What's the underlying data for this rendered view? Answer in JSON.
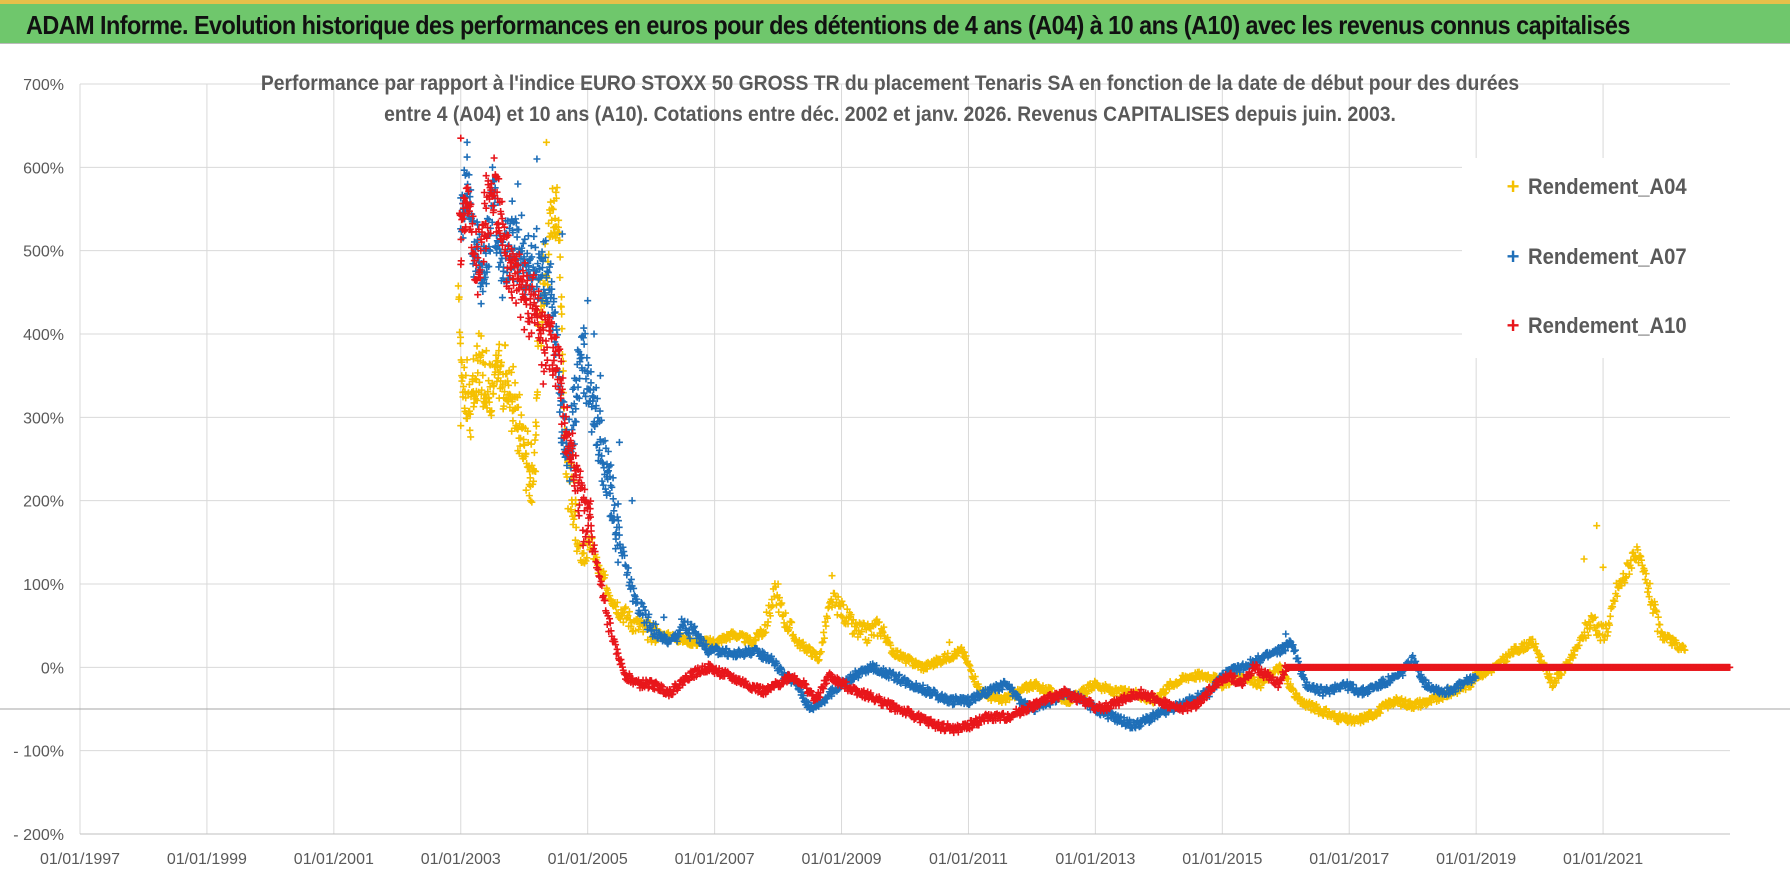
{
  "header": {
    "title": "ADAM Informe. Evolution historique des performances en euros pour des détentions de 4 ans (A04) à 10 ans (A10) avec les revenus connus capitalisés"
  },
  "chart_data": {
    "type": "scatter",
    "title_line1": "Performance par rapport à l'indice EURO STOXX 50 GROSS TR  du placement Tenaris SA en fonction de la date de début pour des durées",
    "title_line2": "entre 4 (A04) et 10 ans (A10). Cotations entre déc. 2002 et janv. 2026. Revenus CAPITALISES depuis juin. 2003.",
    "xlabel": "",
    "ylabel": "",
    "x_ticks": [
      "01/01/1997",
      "01/01/1999",
      "01/01/2001",
      "01/01/2003",
      "01/01/2005",
      "01/01/2007",
      "01/01/2009",
      "01/01/2011",
      "01/01/2013",
      "01/01/2015",
      "01/01/2017",
      "01/01/2019",
      "01/01/2021"
    ],
    "x_range": [
      1997.0,
      2023.0
    ],
    "y_ticks": [
      {
        "value": 700,
        "label": "700%"
      },
      {
        "value": 600,
        "label": "600%"
      },
      {
        "value": 500,
        "label": "500%"
      },
      {
        "value": 400,
        "label": "400%"
      },
      {
        "value": 300,
        "label": "300%"
      },
      {
        "value": 200,
        "label": "200%"
      },
      {
        "value": 100,
        "label": "100%"
      },
      {
        "value": 0,
        "label": "0%"
      },
      {
        "value": -100,
        "label": "- 100%"
      },
      {
        "value": -200,
        "label": "- 200%"
      }
    ],
    "ylim": [
      -200,
      700
    ],
    "legend_position": "top-right",
    "series": [
      {
        "name": "Rendement_A04",
        "color": "#f5c000",
        "x": [
          2002.97,
          2003.05,
          2003.15,
          2003.3,
          2003.45,
          2003.6,
          2003.75,
          2003.9,
          2004.05,
          2004.15,
          2004.25,
          2004.35,
          2004.45,
          2004.55,
          2004.65,
          2004.75,
          2004.85,
          2004.95,
          2005.05,
          2005.2,
          2005.35,
          2005.5,
          2005.7,
          2005.9,
          2006.1,
          2006.4,
          2006.7,
          2007.0,
          2007.3,
          2007.6,
          2007.8,
          2007.95,
          2008.1,
          2008.3,
          2008.5,
          2008.65,
          2008.75,
          2008.85,
          2009.0,
          2009.2,
          2009.4,
          2009.6,
          2009.8,
          2010.0,
          2010.3,
          2010.6,
          2010.9,
          2011.2,
          2011.5,
          2011.8,
          2012.0,
          2012.3,
          2012.6,
          2013.0,
          2013.3,
          2013.6,
          2013.9,
          2014.2,
          2014.5,
          2014.8,
          2015.0,
          2015.3,
          2015.6,
          2015.9,
          2016.2,
          2016.5,
          2016.8,
          2017.1,
          2017.4,
          2017.7,
          2018.0,
          2018.3,
          2018.6,
          2018.9,
          2019.0,
          2019.3,
          2019.6,
          2019.9,
          2020.2,
          2020.5,
          2020.7,
          2020.85,
          2020.95,
          2021.1,
          2021.2,
          2021.35,
          2021.5,
          2021.7,
          2021.9,
          2022.1,
          2022.3
        ],
        "y": [
          420,
          340,
          310,
          360,
          330,
          350,
          340,
          300,
          250,
          240,
          420,
          480,
          560,
          520,
          260,
          200,
          140,
          130,
          150,
          110,
          90,
          70,
          55,
          45,
          40,
          35,
          30,
          30,
          40,
          30,
          50,
          90,
          60,
          30,
          20,
          10,
          50,
          80,
          70,
          45,
          40,
          50,
          20,
          10,
          0,
          10,
          20,
          -30,
          -40,
          -30,
          -20,
          -30,
          -40,
          -20,
          -30,
          -30,
          -40,
          -20,
          -10,
          -10,
          -20,
          -10,
          -20,
          0,
          -40,
          -50,
          -60,
          -65,
          -55,
          -40,
          -45,
          -40,
          -30,
          -20,
          -10,
          0,
          20,
          30,
          -20,
          10,
          40,
          60,
          40,
          50,
          90,
          110,
          140,
          100,
          40,
          30,
          20
        ],
        "scatter": [
          [
            2003.0,
            290
          ],
          [
            2003.2,
            370
          ],
          [
            2003.6,
            380
          ],
          [
            2003.9,
            260
          ],
          [
            2004.1,
            200
          ],
          [
            2004.35,
            630
          ],
          [
            2004.5,
            570
          ],
          [
            2008.0,
            100
          ],
          [
            2008.85,
            110
          ],
          [
            2010.7,
            30
          ],
          [
            2020.7,
            130
          ],
          [
            2020.9,
            170
          ],
          [
            2021.0,
            120
          ]
        ]
      },
      {
        "name": "Rendement_A07",
        "color": "#1f6fb8",
        "x": [
          2003.0,
          2003.1,
          2003.2,
          2003.35,
          2003.5,
          2003.65,
          2003.8,
          2003.95,
          2004.1,
          2004.25,
          2004.4,
          2004.5,
          2004.6,
          2004.7,
          2004.8,
          2004.9,
          2005.0,
          2005.1,
          2005.25,
          2005.4,
          2005.5,
          2005.6,
          2005.75,
          2005.9,
          2006.1,
          2006.3,
          2006.5,
          2006.7,
          2006.9,
          2007.1,
          2007.3,
          2007.6,
          2007.9,
          2008.1,
          2008.3,
          2008.5,
          2008.7,
          2008.85,
          2009.0,
          2009.2,
          2009.5,
          2009.8,
          2010.1,
          2010.4,
          2010.7,
          2011.0,
          2011.3,
          2011.6,
          2011.8,
          2012.0,
          2012.3,
          2012.6,
          2013.0,
          2013.3,
          2013.6,
          2013.9,
          2014.2,
          2014.5,
          2014.8,
          2015.0,
          2015.3,
          2015.6,
          2015.9,
          2016.1,
          2016.3,
          2016.6,
          2016.9,
          2017.2,
          2017.5,
          2017.8,
          2018.0,
          2018.2,
          2018.5,
          2018.8,
          2019.0
        ],
        "y": [
          540,
          580,
          510,
          470,
          560,
          480,
          520,
          500,
          470,
          490,
          450,
          400,
          280,
          260,
          310,
          390,
          330,
          300,
          250,
          200,
          150,
          120,
          80,
          60,
          40,
          30,
          50,
          40,
          20,
          20,
          15,
          20,
          10,
          -10,
          -20,
          -50,
          -40,
          -30,
          -20,
          -10,
          0,
          -10,
          -20,
          -30,
          -40,
          -40,
          -30,
          -20,
          -40,
          -50,
          -40,
          -30,
          -50,
          -60,
          -70,
          -60,
          -50,
          -40,
          -30,
          -10,
          0,
          10,
          20,
          30,
          -20,
          -30,
          -20,
          -30,
          -20,
          -10,
          10,
          -20,
          -30,
          -20,
          -10
        ],
        "scatter": [
          [
            2003.1,
            630
          ],
          [
            2003.5,
            600
          ],
          [
            2003.9,
            580
          ],
          [
            2004.2,
            610
          ],
          [
            2004.6,
            520
          ],
          [
            2005.0,
            440
          ],
          [
            2005.1,
            400
          ],
          [
            2005.2,
            350
          ],
          [
            2005.5,
            270
          ],
          [
            2005.7,
            200
          ],
          [
            2006.2,
            60
          ],
          [
            2016.0,
            40
          ]
        ]
      },
      {
        "name": "Rendement_A10",
        "color": "#e8161b",
        "x": [
          2002.98,
          2003.1,
          2003.25,
          2003.4,
          2003.55,
          2003.7,
          2003.85,
          2004.0,
          2004.15,
          2004.3,
          2004.45,
          2004.55,
          2004.65,
          2004.75,
          2004.85,
          2004.95,
          2005.05,
          2005.15,
          2005.3,
          2005.45,
          2005.6,
          2005.8,
          2006.0,
          2006.3,
          2006.6,
          2006.9,
          2007.2,
          2007.5,
          2007.8,
          2008.0,
          2008.2,
          2008.4,
          2008.6,
          2008.8,
          2009.0,
          2009.3,
          2009.6,
          2009.9,
          2010.2,
          2010.5,
          2010.8,
          2011.0,
          2011.3,
          2011.6,
          2011.9,
          2012.2,
          2012.5,
          2012.8,
          2013.1,
          2013.4,
          2013.7,
          2014.0,
          2014.3,
          2014.6,
          2014.9,
          2015.1,
          2015.3,
          2015.5,
          2015.7,
          2015.9,
          2016.0,
          2017.0,
          2018.0,
          2019.0,
          2020.0,
          2021.0,
          2022.0,
          2023.0
        ],
        "y": [
          520,
          560,
          480,
          540,
          570,
          500,
          470,
          450,
          430,
          400,
          380,
          360,
          290,
          250,
          210,
          180,
          160,
          120,
          60,
          20,
          -10,
          -20,
          -20,
          -30,
          -10,
          0,
          -10,
          -20,
          -30,
          -20,
          -10,
          -20,
          -40,
          -10,
          -20,
          -30,
          -40,
          -50,
          -60,
          -70,
          -75,
          -70,
          -60,
          -60,
          -50,
          -40,
          -30,
          -40,
          -50,
          -40,
          -30,
          -40,
          -50,
          -45,
          -20,
          -10,
          -20,
          0,
          -10,
          -20,
          0,
          0,
          0,
          0,
          0,
          0,
          0,
          0
        ],
        "scatter": [
          [
            2003.0,
            635
          ],
          [
            2003.4,
            590
          ],
          [
            2003.8,
            480
          ],
          [
            2004.4,
            420
          ],
          [
            2005.0,
            190
          ],
          [
            2004.3,
            340
          ]
        ]
      }
    ]
  }
}
